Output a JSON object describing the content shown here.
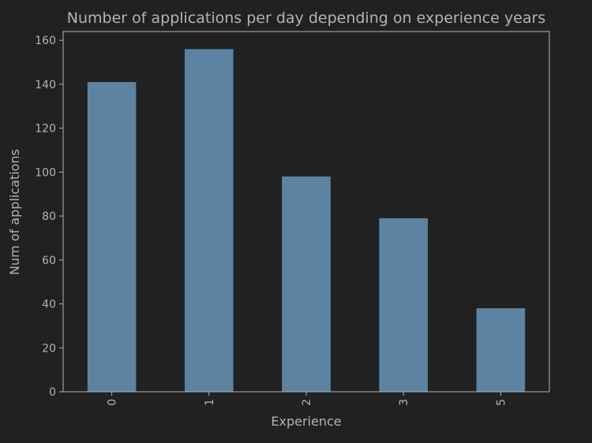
{
  "chart_data": {
    "type": "bar",
    "title": "Number of applications per day depending on experience years",
    "xlabel": "Experience",
    "ylabel": "Num of applications",
    "categories": [
      "0",
      "1",
      "2",
      "3",
      "5"
    ],
    "values": [
      141,
      156,
      98,
      79,
      38
    ],
    "ylim": [
      0,
      164
    ],
    "yticks": [
      0,
      20,
      40,
      60,
      80,
      100,
      120,
      140,
      160
    ],
    "grid": false,
    "x_tick_rotation": "vertical",
    "colors": {
      "background": "#212121",
      "bar": "#5c84a2",
      "text": "#b3b3b3",
      "axis": "#b3b3b3"
    }
  }
}
